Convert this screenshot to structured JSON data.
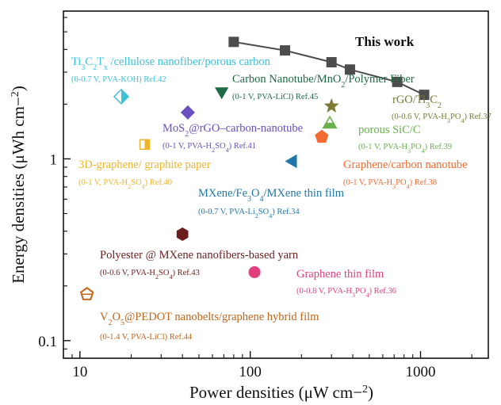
{
  "chart_data": {
    "type": "scatter",
    "title": "",
    "xlabel": "Power densities (μW cm⁻²)",
    "ylabel": "Energy densities (μWh cm⁻²)",
    "x_scale": "log",
    "y_scale": "log",
    "xlim": [
      8,
      2500
    ],
    "ylim": [
      0.08,
      6.5
    ],
    "x_ticks": [
      {
        "value": 10,
        "label": "10"
      },
      {
        "value": 100,
        "label": "100"
      },
      {
        "value": 1000,
        "label": "1000"
      }
    ],
    "y_ticks": [
      {
        "value": 0.1,
        "label": "0.1"
      },
      {
        "value": 1,
        "label": "1"
      }
    ],
    "grid": false,
    "series": [
      {
        "name": "This work",
        "color": "#4d4d4d",
        "marker": "square",
        "connected": true,
        "points": [
          {
            "x": 80,
            "y": 4.4
          },
          {
            "x": 160,
            "y": 3.95
          },
          {
            "x": 300,
            "y": 3.4
          },
          {
            "x": 385,
            "y": 3.1
          },
          {
            "x": 730,
            "y": 2.65
          },
          {
            "x": 1050,
            "y": 2.25
          }
        ]
      },
      {
        "name": "Ti3C2Tx /cellulose nanofiber/porous carbon",
        "label_parts": [
          "Ti",
          "3",
          "C",
          "2",
          "T",
          "x",
          " /cellulose nanofiber/porous carbon"
        ],
        "condition": "(0-0.7 V, PVA-KOH) Ref.42",
        "color": "#3cc1d8",
        "marker": "diamond-half",
        "points": [
          {
            "x": 17.5,
            "y": 2.2
          }
        ]
      },
      {
        "name": "Carbon Nanotube/MnO2/Polymer Fiber",
        "label_parts": [
          "Carbon Nanotube/MnO",
          "2",
          "/Polymer Fiber"
        ],
        "condition": "(0-1 V, PVA-LiCl) Ref.45",
        "color": "#1e6b45",
        "marker": "triangle-down",
        "points": [
          {
            "x": 68,
            "y": 2.35
          }
        ]
      },
      {
        "name": "rGO/Ti3C2",
        "label_parts": [
          "rGO/Ti",
          "3",
          "C",
          "2"
        ],
        "condition": "(0-0.6 V, PVA-H3PO4) Ref.37",
        "color": "#7b7a34",
        "marker": "star",
        "points": [
          {
            "x": 300,
            "y": 1.95
          }
        ]
      },
      {
        "name": "porous SiC/C",
        "label_parts": [
          "porous SiC/C"
        ],
        "condition": "(0-1 V, PVA-H3PO4)  Ref.39",
        "color": "#6ab04c",
        "marker": "triangle-up-half",
        "points": [
          {
            "x": 293,
            "y": 1.55
          }
        ]
      },
      {
        "name": "MoS2@rGO–carbon-nanotube",
        "label_parts": [
          "MoS",
          "2",
          "@rGO–carbon-nanotube"
        ],
        "condition": "(0-1 V, PVA-H2SO4) Ref.41",
        "color": "#6a4fbf",
        "marker": "diamond",
        "points": [
          {
            "x": 43,
            "y": 1.8
          }
        ]
      },
      {
        "name": "3D-graphene/ graphite paper",
        "label_parts": [
          "3D-graphene/ graphite paper"
        ],
        "condition": "(0-1 V, PVA-H2SO4) Ref.40",
        "color": "#f0b429",
        "marker": "square-half",
        "points": [
          {
            "x": 24,
            "y": 1.2
          }
        ]
      },
      {
        "name": "Graphene/carbon nanotube",
        "label_parts": [
          "Graphene/carbon nanotube"
        ],
        "condition": "(0-1 V, PVA-H3PO4) Ref.38",
        "color": "#f26b32",
        "marker": "pentagon",
        "points": [
          {
            "x": 263,
            "y": 1.32
          }
        ]
      },
      {
        "name": "MXene/Fe3O4/MXene thin film",
        "label_parts": [
          "MXene/Fe",
          "3",
          "O",
          "4",
          "/MXene thin film"
        ],
        "condition": "(0-0.7 V, PVA-Li2SO4) Ref.34",
        "color": "#1f77a8",
        "marker": "triangle-left",
        "points": [
          {
            "x": 178,
            "y": 0.97
          }
        ]
      },
      {
        "name": "Polyester @ MXene nanofibers-based yarn",
        "label_parts": [
          "Polyester @ MXene nanofibers-based yarn"
        ],
        "condition": "(0-0.6 V, PVA-H2SO4) Ref.43",
        "color": "#6b1d1d",
        "marker": "hexagon",
        "points": [
          {
            "x": 40,
            "y": 0.385
          }
        ]
      },
      {
        "name": "Graphene thin film",
        "label_parts": [
          "Graphene thin film"
        ],
        "condition": "(0-0.8 V, PVA-H3PO4) Ref.36",
        "color": "#e0407e",
        "marker": "circle",
        "points": [
          {
            "x": 106,
            "y": 0.238
          }
        ]
      },
      {
        "name": "V2O5@PEDOT nanobelts/graphene hybrid film",
        "label_parts": [
          "V",
          "2",
          "O",
          "5",
          "@PEDOT nanobelts/graphene hybrid film"
        ],
        "condition": "(0-1.4 V, PVA-LiCl) Ref.44",
        "color": "#c0651b",
        "marker": "pentagon-open",
        "points": [
          {
            "x": 11,
            "y": 0.18
          }
        ]
      }
    ]
  }
}
